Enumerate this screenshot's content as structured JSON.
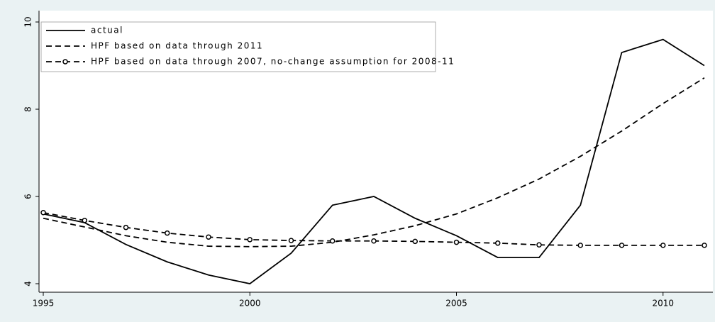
{
  "chart_data": {
    "type": "line",
    "x": [
      1995,
      1996,
      1997,
      1998,
      1999,
      2000,
      2001,
      2002,
      2003,
      2004,
      2005,
      2006,
      2007,
      2008,
      2009,
      2010,
      2011
    ],
    "series": [
      {
        "name": "actual",
        "color": "#000000",
        "line_style": "solid",
        "marker": "none",
        "values": [
          5.6,
          5.4,
          4.9,
          4.5,
          4.2,
          4.0,
          4.7,
          5.8,
          6.0,
          5.5,
          5.1,
          4.6,
          4.6,
          5.8,
          9.3,
          9.6,
          9.0
        ]
      },
      {
        "name": "HPF based on data through 2011",
        "color": "#000000",
        "line_style": "dashed",
        "marker": "none",
        "values": [
          5.5,
          5.3,
          5.1,
          4.95,
          4.86,
          4.85,
          4.86,
          4.95,
          5.12,
          5.33,
          5.6,
          5.97,
          6.4,
          6.92,
          7.5,
          8.13,
          8.72
        ]
      },
      {
        "name": "HPF based on data through 2007, no-change assumption for 2008-11",
        "color": "#000000",
        "line_style": "dashed",
        "marker": "circle",
        "values": [
          5.63,
          5.45,
          5.29,
          5.16,
          5.07,
          5.01,
          4.99,
          4.98,
          4.98,
          4.97,
          4.95,
          4.93,
          4.89,
          4.88,
          4.88,
          4.88,
          4.88
        ]
      }
    ],
    "xlim": [
      1995,
      2011
    ],
    "xticks": [
      1995,
      2000,
      2005,
      2010
    ],
    "ylim": [
      4,
      10
    ],
    "yticks": [
      4,
      6,
      8,
      10
    ],
    "grid": false,
    "legend_position": "top-left"
  }
}
